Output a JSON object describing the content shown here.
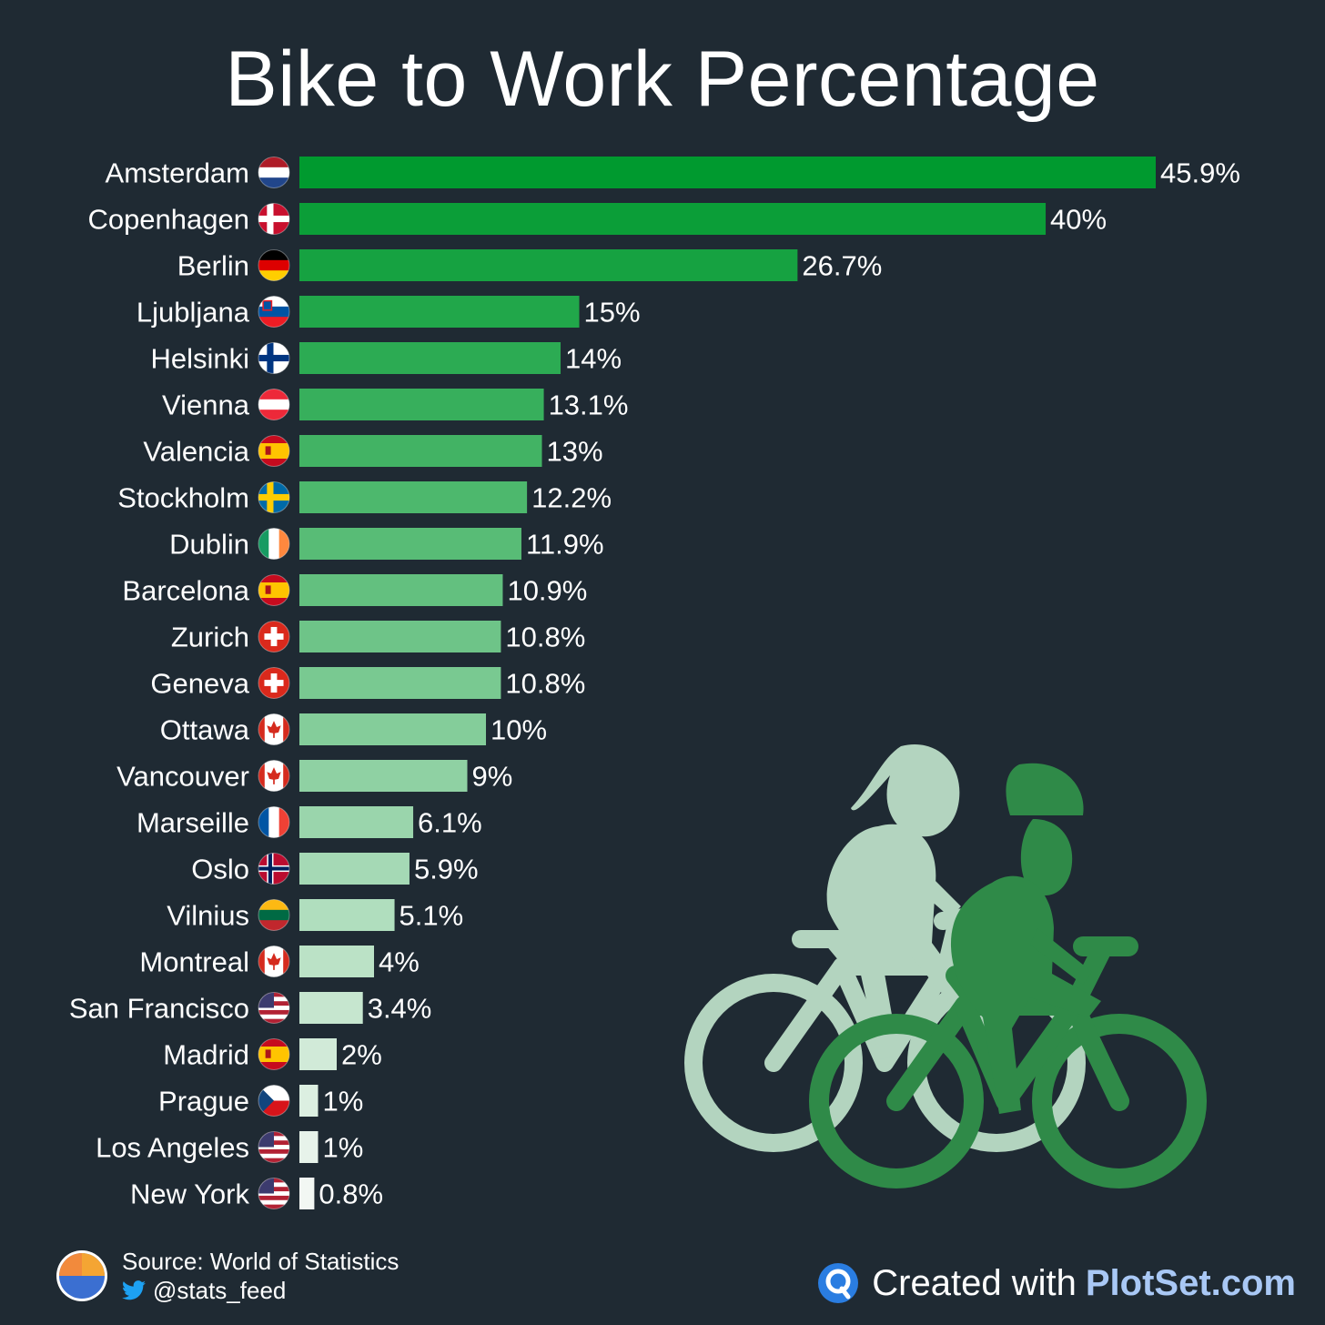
{
  "title": "Bike to Work Percentage",
  "chart_data": {
    "type": "bar",
    "orientation": "horizontal",
    "title": "Bike to Work Percentage",
    "xlabel": "",
    "ylabel": "",
    "xlim": [
      0,
      45.9
    ],
    "grid": false,
    "categories": [
      "Amsterdam",
      "Copenhagen",
      "Berlin",
      "Ljubljana",
      "Helsinki",
      "Vienna",
      "Valencia",
      "Stockholm",
      "Dublin",
      "Barcelona",
      "Zurich",
      "Geneva",
      "Ottawa",
      "Vancouver",
      "Marseille",
      "Oslo",
      "Vilnius",
      "Montreal",
      "San Francisco",
      "Madrid",
      "Prague",
      "Los Angeles",
      "New York"
    ],
    "values": [
      45.9,
      40,
      26.7,
      15,
      14,
      13.1,
      13,
      12.2,
      11.9,
      10.9,
      10.8,
      10.8,
      10,
      9,
      6.1,
      5.9,
      5.1,
      4,
      3.4,
      2,
      1,
      1,
      0.8
    ],
    "value_labels": [
      "45.9%",
      "40%",
      "26.7%",
      "15%",
      "14%",
      "13.1%",
      "13%",
      "12.2%",
      "11.9%",
      "10.9%",
      "10.8%",
      "10.8%",
      "10%",
      "9%",
      "6.1%",
      "5.9%",
      "5.1%",
      "4%",
      "3.4%",
      "2%",
      "1%",
      "1%",
      "0.8%"
    ],
    "flags": [
      "netherlands",
      "denmark",
      "germany",
      "slovenia",
      "finland",
      "austria",
      "spain",
      "sweden",
      "ireland",
      "spain",
      "switzerland",
      "switzerland",
      "canada",
      "canada",
      "france",
      "norway",
      "lithuania",
      "canada",
      "usa",
      "spain",
      "czechia",
      "usa",
      "usa"
    ],
    "bar_color_start": "#009a2f",
    "bar_color_end": "#f2f7f3"
  },
  "footer": {
    "source": "Source: World of Statistics",
    "handle": "@stats_feed",
    "credit_prefix": "Created with",
    "credit_brand": "PlotSet.com"
  },
  "colors": {
    "background": "#1f2a33",
    "rider_light": "#b3d4bf",
    "rider_dark": "#2f8a48",
    "brand": "#a9c8f5"
  }
}
